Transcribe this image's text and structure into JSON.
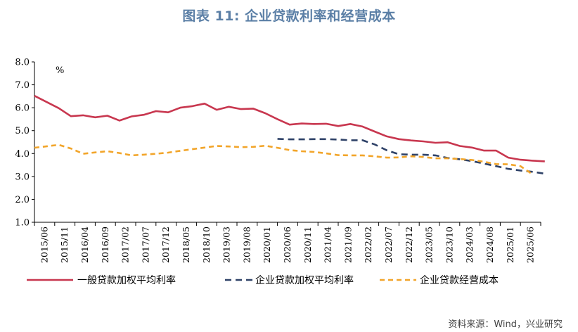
{
  "header": {
    "title": "图表 11: 企业贷款利率和经营成本"
  },
  "footer": {
    "source": "资料来源：Wind，兴业研究"
  },
  "chart_data": {
    "type": "line",
    "title": "图表 11: 企业贷款利率和经营成本",
    "ylabel": "%",
    "xlabel": "",
    "ylim": [
      1.0,
      8.0
    ],
    "yticks": [
      "1.0",
      "2.0",
      "3.0",
      "4.0",
      "5.0",
      "6.0",
      "7.0",
      "8.0"
    ],
    "ytick_values": [
      1,
      2,
      3,
      4,
      5,
      6,
      7,
      8
    ],
    "x_range": [
      0,
      125
    ],
    "xtick_labels": [
      "2015/06",
      "2015/11",
      "2016/04",
      "2016/09",
      "2017/02",
      "2017/07",
      "2017/12",
      "2018/05",
      "2018/10",
      "2019/03",
      "2019/08",
      "2020/01",
      "2020/06",
      "2020/11",
      "2021/04",
      "2021/09",
      "2022/02",
      "2022/07",
      "2022/12",
      "2023/05",
      "2023/10",
      "2024/03",
      "2024/08",
      "2025/01",
      "2025/06"
    ],
    "legend_position": "bottom",
    "series": [
      {
        "name": "一般贷款加权平均利率",
        "color": "#c8374f",
        "dash": "solid",
        "x": [
          0,
          6,
          9,
          12,
          15,
          18,
          21,
          24,
          27,
          30,
          33,
          36,
          39,
          42,
          45,
          48,
          51,
          54,
          57,
          60,
          63,
          66,
          69,
          72,
          75,
          78,
          81,
          84,
          87,
          90,
          93,
          96,
          99,
          102,
          105,
          108,
          111,
          114,
          117,
          120,
          123,
          126
        ],
        "y": [
          6.52,
          5.98,
          5.63,
          5.67,
          5.58,
          5.65,
          5.44,
          5.62,
          5.69,
          5.85,
          5.8,
          6.0,
          6.07,
          6.18,
          5.91,
          6.04,
          5.94,
          5.96,
          5.76,
          5.5,
          5.26,
          5.31,
          5.29,
          5.3,
          5.2,
          5.29,
          5.18,
          4.96,
          4.75,
          4.63,
          4.57,
          4.53,
          4.47,
          4.49,
          4.33,
          4.26,
          4.13,
          4.13,
          3.82,
          3.73,
          3.69,
          3.66
        ]
      },
      {
        "name": "企业贷款加权平均利率",
        "color": "#2f4268",
        "dash": "dashed",
        "x": [
          60,
          63,
          66,
          69,
          72,
          75,
          78,
          81,
          84,
          87,
          90,
          93,
          96,
          99,
          102,
          105,
          108,
          111,
          114,
          117,
          120,
          123,
          126
        ],
        "y": [
          4.64,
          4.62,
          4.62,
          4.63,
          4.63,
          4.61,
          4.58,
          4.58,
          4.4,
          4.14,
          3.97,
          3.95,
          3.95,
          3.92,
          3.81,
          3.75,
          3.67,
          3.56,
          3.45,
          3.33,
          3.26,
          3.2,
          3.12
        ]
      },
      {
        "name": "企业贷款经营成本",
        "color": "#f2a52a",
        "dash": "dashed",
        "x": [
          0,
          6,
          9,
          12,
          15,
          18,
          21,
          24,
          27,
          30,
          33,
          36,
          39,
          42,
          45,
          48,
          51,
          54,
          57,
          60,
          63,
          66,
          69,
          72,
          75,
          78,
          81,
          84,
          87,
          90,
          93,
          96,
          99,
          102,
          105,
          108,
          111,
          114,
          117,
          120,
          123
        ],
        "y": [
          4.25,
          4.38,
          4.22,
          3.99,
          4.05,
          4.1,
          4.02,
          3.92,
          3.95,
          3.99,
          4.04,
          4.12,
          4.19,
          4.26,
          4.33,
          4.31,
          4.28,
          4.29,
          4.34,
          4.25,
          4.15,
          4.1,
          4.07,
          4.01,
          3.93,
          3.92,
          3.92,
          3.88,
          3.82,
          3.83,
          3.88,
          3.85,
          3.79,
          3.79,
          3.76,
          3.72,
          3.64,
          3.54,
          3.53,
          3.45,
          3.09
        ]
      }
    ]
  }
}
